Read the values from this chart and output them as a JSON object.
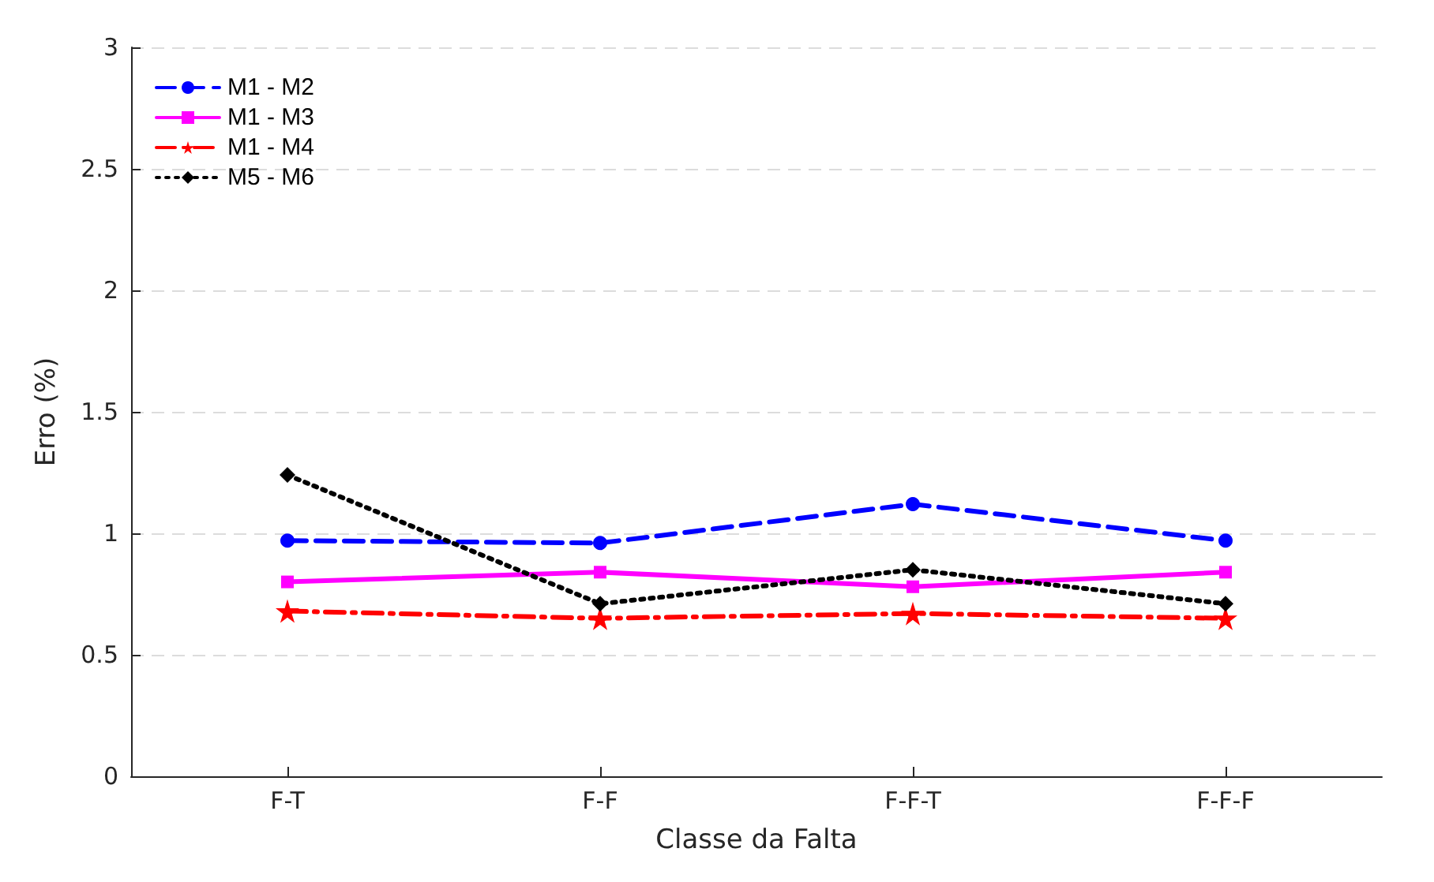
{
  "chart_data": {
    "type": "line",
    "xlabel": "Classe da Falta",
    "ylabel": "Erro (%)",
    "categories": [
      "F-T",
      "F-F",
      "F-F-T",
      "F-F-F"
    ],
    "series": [
      {
        "name": "M1 - M2",
        "color": "#0000ff",
        "values": [
          0.97,
          0.96,
          1.12,
          0.97
        ],
        "marker": "circle",
        "line_style": "dashed"
      },
      {
        "name": "M1 - M3",
        "color": "#ff00ff",
        "values": [
          0.8,
          0.84,
          0.78,
          0.84
        ],
        "marker": "square",
        "line_style": "solid"
      },
      {
        "name": "M1 - M4",
        "color": "#ff0000",
        "values": [
          0.68,
          0.65,
          0.67,
          0.65
        ],
        "marker": "star",
        "line_style": "dashdot"
      },
      {
        "name": "M5 - M6",
        "color": "#000000",
        "values": [
          1.24,
          0.71,
          0.85,
          0.71
        ],
        "marker": "diamond",
        "line_style": "dotted"
      }
    ],
    "ylim": [
      0,
      3
    ],
    "yticks": [
      0,
      0.5,
      1,
      1.5,
      2,
      2.5,
      3
    ],
    "grid": "y",
    "legend": "top left"
  }
}
